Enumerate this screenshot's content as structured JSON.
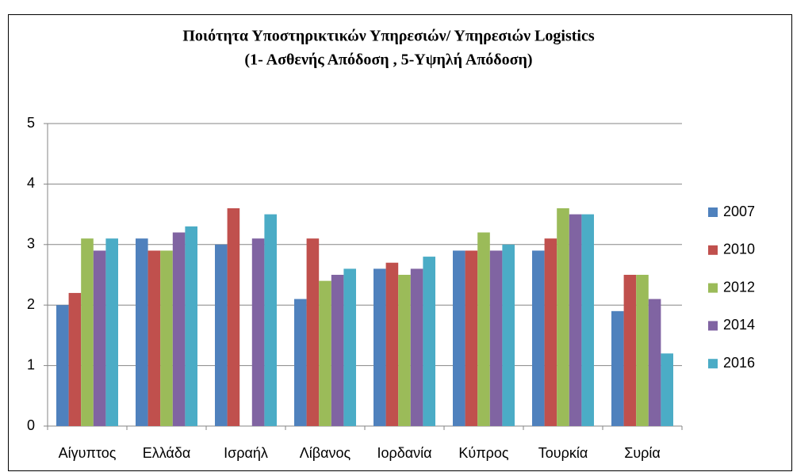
{
  "chart_data": {
    "type": "bar",
    "title": [
      "Ποιότητα Υποστηρικτικών Υπηρεσιών/ Υπηρεσιών Logistics",
      "(1- Ασθενής Απόδοση , 5-Υψηλή Απόδοση)"
    ],
    "categories": [
      "Αίγυπτος",
      "Ελλάδα",
      "Ισραήλ",
      "Λίβανος",
      "Ιορδανία",
      "Κύπρος",
      "Τουρκία",
      "Συρία"
    ],
    "series": [
      {
        "name": "2007",
        "color": "#4f81bd",
        "values": [
          2.0,
          3.1,
          3.0,
          2.1,
          2.6,
          2.9,
          2.9,
          1.9
        ]
      },
      {
        "name": "2010",
        "color": "#c0504d",
        "values": [
          2.2,
          2.9,
          3.6,
          3.1,
          2.7,
          2.9,
          3.1,
          2.5
        ]
      },
      {
        "name": "2012",
        "color": "#9bbb59",
        "values": [
          3.1,
          2.9,
          null,
          2.4,
          2.5,
          3.2,
          3.6,
          2.5
        ]
      },
      {
        "name": "2014",
        "color": "#8064a2",
        "values": [
          2.9,
          3.2,
          3.1,
          2.5,
          2.6,
          2.9,
          3.5,
          2.1
        ]
      },
      {
        "name": "2016",
        "color": "#4bacc6",
        "values": [
          3.1,
          3.3,
          3.5,
          2.6,
          2.8,
          3.0,
          3.5,
          1.2
        ]
      }
    ],
    "ylim": [
      0,
      5
    ],
    "yticks": [
      0,
      1,
      2,
      3,
      4,
      5
    ],
    "grid": true,
    "legend": "right"
  }
}
